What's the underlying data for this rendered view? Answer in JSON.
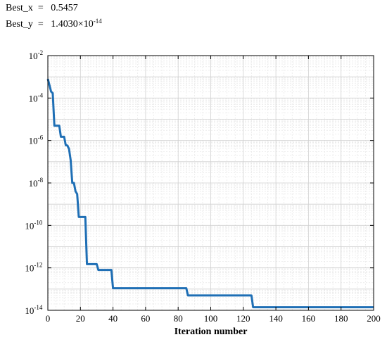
{
  "results": {
    "best_x_label": "Best_x",
    "best_x_value": "0.5457",
    "best_y_label": "Best_y",
    "best_y_mantissa": "1.4030×10",
    "best_y_exponent": "-14"
  },
  "chart_data": {
    "type": "line",
    "title": "",
    "xlabel": "Iteration number",
    "ylabel": "",
    "xlim": [
      0,
      200
    ],
    "ylim": [
      1e-14,
      0.01
    ],
    "yscale": "log",
    "grid": true,
    "x_ticks": [
      0,
      20,
      40,
      60,
      80,
      100,
      120,
      140,
      160,
      180,
      200
    ],
    "y_ticks": [
      {
        "value": 0.01,
        "base": "10",
        "exp": "-2"
      },
      {
        "value": 0.0001,
        "base": "10",
        "exp": "-4"
      },
      {
        "value": 1e-06,
        "base": "10",
        "exp": "-6"
      },
      {
        "value": 1e-08,
        "base": "10",
        "exp": "-8"
      },
      {
        "value": 1e-10,
        "base": "10",
        "exp": "-10"
      },
      {
        "value": 1e-12,
        "base": "10",
        "exp": "-12"
      },
      {
        "value": 1e-14,
        "base": "10",
        "exp": "-14"
      }
    ],
    "color": "#1f6fb5",
    "series": [
      {
        "x": [
          0,
          1,
          2,
          3,
          4,
          5,
          6,
          7,
          8,
          9,
          10,
          11,
          12,
          13,
          14,
          15,
          16,
          17,
          18,
          19,
          20,
          21,
          22,
          23,
          24,
          25,
          30,
          31,
          38,
          39,
          40,
          41,
          80,
          85,
          86,
          120,
          125,
          126,
          200
        ],
        "y": [
          0.0008,
          0.0004,
          0.0002,
          0.00017,
          5e-06,
          5e-06,
          5e-06,
          5e-06,
          1.5e-06,
          1.5e-06,
          1.5e-06,
          6e-07,
          5.8e-07,
          4e-07,
          1.2e-07,
          1e-08,
          1e-08,
          4e-09,
          3e-09,
          2.5e-10,
          2.5e-10,
          2.5e-10,
          2.5e-10,
          2.5e-10,
          1.5e-12,
          1.5e-12,
          1.5e-12,
          8e-13,
          8e-13,
          8e-13,
          1.1e-13,
          1.1e-13,
          1.1e-13,
          1.1e-13,
          5e-14,
          5e-14,
          5e-14,
          1.4e-14,
          1.4e-14
        ]
      }
    ]
  }
}
